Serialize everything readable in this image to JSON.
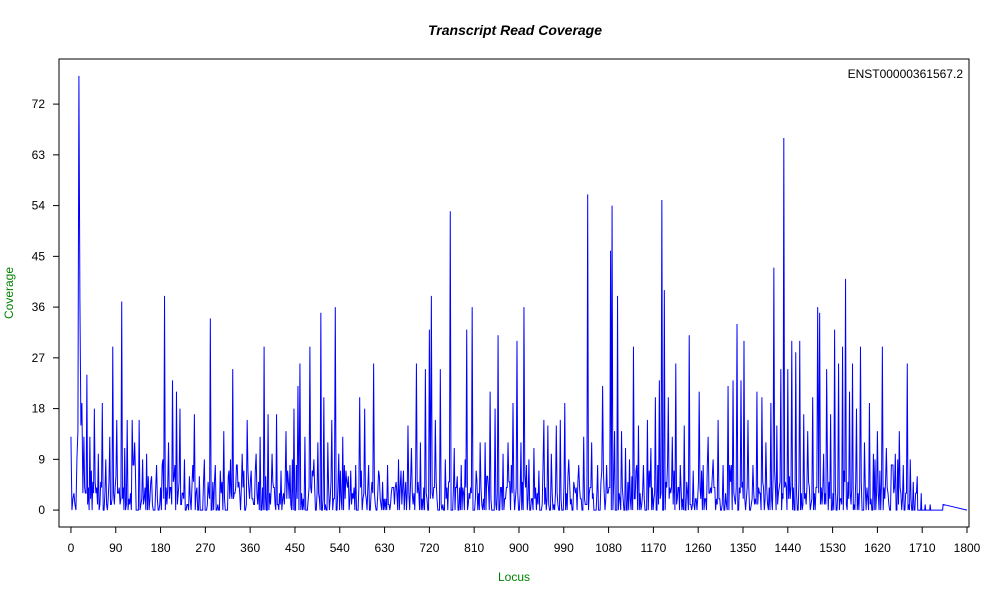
{
  "chart_data": {
    "type": "line",
    "title": "Transcript Read Coverage",
    "xlabel": "Locus",
    "ylabel": "Coverage",
    "label_color": "#008000",
    "line_color": "#0000ff",
    "xlim": [
      -24,
      1804
    ],
    "ylim": [
      -3,
      80
    ],
    "x_ticks": [
      0,
      90,
      180,
      270,
      360,
      450,
      540,
      630,
      720,
      810,
      900,
      990,
      1080,
      1170,
      1260,
      1350,
      1440,
      1530,
      1620,
      1710,
      1800
    ],
    "y_ticks": [
      0,
      9,
      18,
      27,
      36,
      45,
      54,
      63,
      72
    ],
    "grid": false,
    "legend_placement": "top-right",
    "series": [
      {
        "name": "ENST00000361567.2",
        "peaks": [
          [
            0,
            13
          ],
          [
            4,
            2
          ],
          [
            8,
            1
          ],
          [
            12,
            9
          ],
          [
            14,
            14
          ],
          [
            16,
            77
          ],
          [
            18,
            37
          ],
          [
            20,
            15
          ],
          [
            22,
            19
          ],
          [
            26,
            13
          ],
          [
            32,
            24
          ],
          [
            38,
            13
          ],
          [
            47,
            18
          ],
          [
            55,
            10
          ],
          [
            63,
            19
          ],
          [
            70,
            9
          ],
          [
            78,
            13
          ],
          [
            84,
            29
          ],
          [
            92,
            16
          ],
          [
            102,
            37
          ],
          [
            108,
            11
          ],
          [
            113,
            16
          ],
          [
            123,
            16
          ],
          [
            128,
            12
          ],
          [
            137,
            16
          ],
          [
            144,
            9
          ],
          [
            152,
            10
          ],
          [
            162,
            6
          ],
          [
            172,
            8
          ],
          [
            188,
            38
          ],
          [
            196,
            12
          ],
          [
            204,
            23
          ],
          [
            212,
            21
          ],
          [
            219,
            18
          ],
          [
            228,
            9
          ],
          [
            238,
            6
          ],
          [
            248,
            17
          ],
          [
            258,
            6
          ],
          [
            268,
            9
          ],
          [
            280,
            34
          ],
          [
            290,
            8
          ],
          [
            300,
            7
          ],
          [
            307,
            14
          ],
          [
            316,
            6
          ],
          [
            325,
            25
          ],
          [
            334,
            8
          ],
          [
            344,
            10
          ],
          [
            354,
            16
          ],
          [
            362,
            7
          ],
          [
            372,
            10
          ],
          [
            380,
            13
          ],
          [
            388,
            29
          ],
          [
            396,
            17
          ],
          [
            404,
            10
          ],
          [
            413,
            17
          ],
          [
            422,
            7
          ],
          [
            432,
            14
          ],
          [
            440,
            8
          ],
          [
            448,
            18
          ],
          [
            456,
            22
          ],
          [
            460,
            26
          ],
          [
            470,
            13
          ],
          [
            480,
            29
          ],
          [
            488,
            9
          ],
          [
            496,
            12
          ],
          [
            502,
            35
          ],
          [
            508,
            20
          ],
          [
            516,
            12
          ],
          [
            524,
            16
          ],
          [
            531,
            36
          ],
          [
            538,
            10
          ],
          [
            546,
            13
          ],
          [
            554,
            5
          ],
          [
            562,
            7
          ],
          [
            572,
            8
          ],
          [
            580,
            20
          ],
          [
            590,
            18
          ],
          [
            598,
            8
          ],
          [
            608,
            26
          ],
          [
            618,
            7
          ],
          [
            626,
            5
          ],
          [
            636,
            8
          ],
          [
            645,
            4
          ],
          [
            658,
            9
          ],
          [
            668,
            7
          ],
          [
            677,
            15
          ],
          [
            684,
            11
          ],
          [
            694,
            26
          ],
          [
            702,
            12
          ],
          [
            712,
            25
          ],
          [
            720,
            32
          ],
          [
            724,
            38
          ],
          [
            732,
            16
          ],
          [
            742,
            25
          ],
          [
            752,
            9
          ],
          [
            762,
            53
          ],
          [
            770,
            11
          ],
          [
            776,
            6
          ],
          [
            784,
            8
          ],
          [
            795,
            32
          ],
          [
            806,
            36
          ],
          [
            814,
            7
          ],
          [
            822,
            12
          ],
          [
            832,
            12
          ],
          [
            842,
            21
          ],
          [
            852,
            18
          ],
          [
            858,
            31
          ],
          [
            868,
            10
          ],
          [
            878,
            12
          ],
          [
            888,
            19
          ],
          [
            896,
            30
          ],
          [
            904,
            12
          ],
          [
            910,
            36
          ],
          [
            920,
            9
          ],
          [
            930,
            11
          ],
          [
            940,
            7
          ],
          [
            950,
            16
          ],
          [
            958,
            15
          ],
          [
            965,
            10
          ],
          [
            975,
            15
          ],
          [
            983,
            16
          ],
          [
            992,
            19
          ],
          [
            1000,
            9
          ],
          [
            1010,
            5
          ],
          [
            1020,
            8
          ],
          [
            1030,
            13
          ],
          [
            1038,
            56
          ],
          [
            1046,
            12
          ],
          [
            1058,
            8
          ],
          [
            1068,
            22
          ],
          [
            1076,
            8
          ],
          [
            1084,
            46
          ],
          [
            1087,
            54
          ],
          [
            1092,
            14
          ],
          [
            1098,
            38
          ],
          [
            1106,
            14
          ],
          [
            1114,
            11
          ],
          [
            1122,
            9
          ],
          [
            1130,
            29
          ],
          [
            1140,
            15
          ],
          [
            1150,
            8
          ],
          [
            1158,
            16
          ],
          [
            1165,
            11
          ],
          [
            1174,
            20
          ],
          [
            1182,
            23
          ],
          [
            1187,
            55
          ],
          [
            1192,
            39
          ],
          [
            1200,
            20
          ],
          [
            1208,
            13
          ],
          [
            1215,
            26
          ],
          [
            1224,
            8
          ],
          [
            1232,
            15
          ],
          [
            1242,
            31
          ],
          [
            1250,
            7
          ],
          [
            1262,
            21
          ],
          [
            1270,
            8
          ],
          [
            1280,
            13
          ],
          [
            1290,
            9
          ],
          [
            1300,
            16
          ],
          [
            1310,
            8
          ],
          [
            1320,
            22
          ],
          [
            1330,
            23
          ],
          [
            1338,
            33
          ],
          [
            1346,
            23
          ],
          [
            1352,
            30
          ],
          [
            1360,
            16
          ],
          [
            1370,
            8
          ],
          [
            1378,
            21
          ],
          [
            1388,
            20
          ],
          [
            1396,
            12
          ],
          [
            1406,
            19
          ],
          [
            1412,
            43
          ],
          [
            1418,
            15
          ],
          [
            1426,
            25
          ],
          [
            1432,
            66
          ],
          [
            1440,
            25
          ],
          [
            1448,
            30
          ],
          [
            1456,
            28
          ],
          [
            1464,
            30
          ],
          [
            1472,
            17
          ],
          [
            1480,
            14
          ],
          [
            1490,
            20
          ],
          [
            1500,
            36
          ],
          [
            1504,
            35
          ],
          [
            1512,
            10
          ],
          [
            1518,
            25
          ],
          [
            1526,
            17
          ],
          [
            1534,
            32
          ],
          [
            1542,
            26
          ],
          [
            1550,
            29
          ],
          [
            1556,
            41
          ],
          [
            1564,
            21
          ],
          [
            1570,
            26
          ],
          [
            1578,
            18
          ],
          [
            1586,
            29
          ],
          [
            1594,
            12
          ],
          [
            1604,
            19
          ],
          [
            1612,
            10
          ],
          [
            1620,
            14
          ],
          [
            1630,
            29
          ],
          [
            1638,
            11
          ],
          [
            1648,
            8
          ],
          [
            1656,
            10
          ],
          [
            1664,
            14
          ],
          [
            1672,
            8
          ],
          [
            1680,
            26
          ],
          [
            1686,
            9
          ],
          [
            1692,
            5
          ],
          [
            1700,
            6
          ],
          [
            1708,
            3
          ],
          [
            1716,
            1
          ],
          [
            1726,
            1
          ],
          [
            1752,
            1
          ]
        ],
        "end_x": 1800,
        "end_y": 0
      }
    ]
  }
}
